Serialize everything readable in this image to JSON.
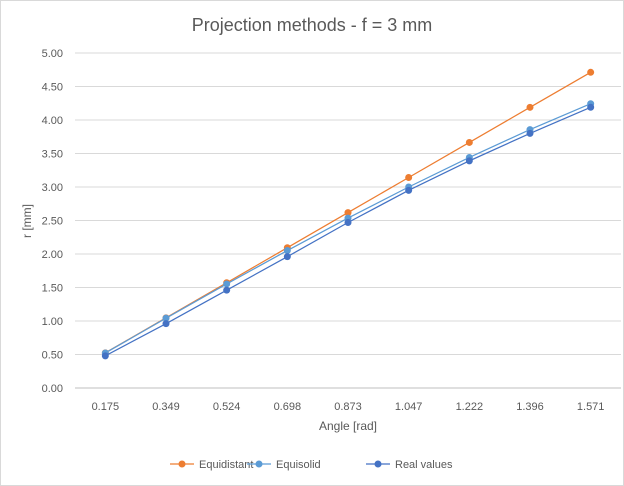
{
  "chart_data": {
    "type": "line",
    "title": "Projection methods - f = 3 mm",
    "xlabel": "Angle [rad]",
    "ylabel": "r [mm]",
    "categories": [
      "0.175",
      "0.349",
      "0.524",
      "0.698",
      "0.873",
      "1.047",
      "1.222",
      "1.396",
      "1.571"
    ],
    "ylim": [
      0,
      5
    ],
    "yticks": [
      "0.00",
      "0.50",
      "1.00",
      "1.50",
      "2.00",
      "2.50",
      "3.00",
      "3.50",
      "4.00",
      "4.50",
      "5.00"
    ],
    "grid": true,
    "legend_position": "bottom",
    "series": [
      {
        "name": "Equidistant",
        "color": "#ed7d31",
        "values": [
          0.525,
          1.047,
          1.571,
          2.094,
          2.618,
          3.142,
          3.665,
          4.189,
          4.712
        ]
      },
      {
        "name": "Equisolid",
        "color": "#5b9bd5",
        "values": [
          0.523,
          1.042,
          1.553,
          2.052,
          2.536,
          3.0,
          3.441,
          3.857,
          4.243
        ]
      },
      {
        "name": "Real values",
        "color": "#4472c4",
        "values": [
          0.48,
          0.96,
          1.46,
          1.96,
          2.47,
          2.95,
          3.39,
          3.8,
          4.19
        ]
      }
    ]
  }
}
